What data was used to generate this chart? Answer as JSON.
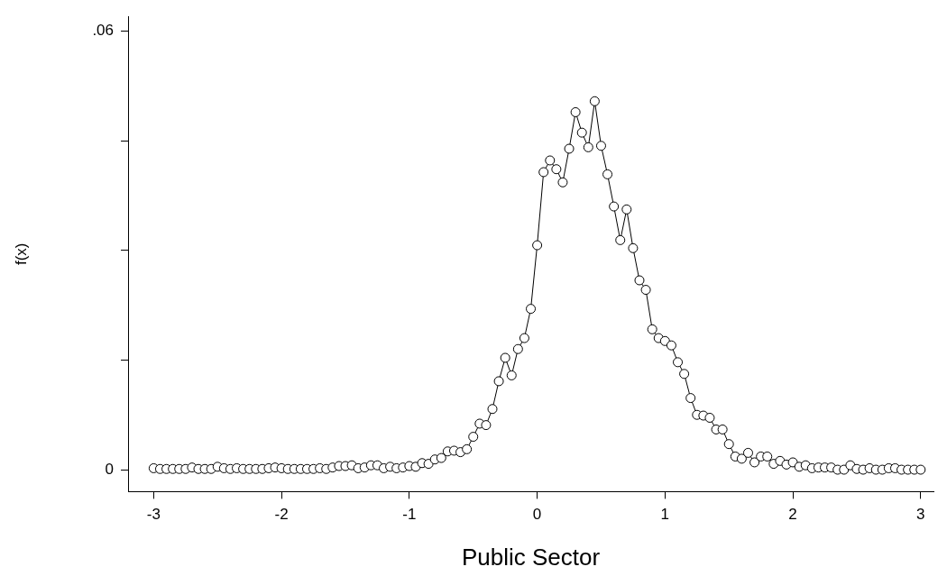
{
  "chart_data": {
    "type": "line",
    "xlabel": "Public Sector",
    "ylabel": "f(x)",
    "xlim": [
      -3.2,
      3.1
    ],
    "xticks": [
      -3,
      -2,
      -1,
      0,
      1,
      2,
      3
    ],
    "ylim": [
      -0.003,
      0.062
    ],
    "yticks": [
      0,
      {
        "value": 0.015,
        "label": null
      },
      {
        "value": 0.03,
        "label": null
      },
      {
        "value": 0.045,
        "label": null
      },
      {
        "value": 0.06,
        "label": ".06"
      }
    ],
    "grid": false,
    "legend": false,
    "marker": "circle",
    "line_style": "solid",
    "x": [
      -3,
      -2.95,
      -2.9,
      -2.85,
      -2.8,
      -2.75,
      -2.7,
      -2.65,
      -2.6,
      -2.55,
      -2.5,
      -2.45,
      -2.4,
      -2.35,
      -2.3,
      -2.25,
      -2.2,
      -2.15,
      -2.1,
      -2.05,
      -2,
      -1.95,
      -1.9,
      -1.85,
      -1.8,
      -1.75,
      -1.7,
      -1.65,
      -1.6,
      -1.55,
      -1.5,
      -1.45,
      -1.4,
      -1.35,
      -1.3,
      -1.25,
      -1.2,
      -1.15,
      -1.1,
      -1.05,
      -1,
      -0.95,
      -0.9,
      -0.85,
      -0.8,
      -0.75,
      -0.7,
      -0.65,
      -0.6,
      -0.55,
      -0.5,
      -0.45,
      -0.4,
      -0.35,
      -0.3,
      -0.25,
      -0.2,
      -0.15,
      -0.1,
      -0.05,
      0,
      0.05,
      0.1,
      0.15,
      0.2,
      0.25,
      0.3,
      0.35,
      0.4,
      0.45,
      0.5,
      0.55,
      0.6,
      0.65,
      0.7,
      0.75,
      0.8,
      0.85,
      0.9,
      0.95,
      1,
      1.05,
      1.1,
      1.15,
      1.2,
      1.25,
      1.3,
      1.35,
      1.4,
      1.45,
      1.5,
      1.55,
      1.6,
      1.65,
      1.7,
      1.75,
      1.8,
      1.85,
      1.9,
      1.95,
      2,
      2.05,
      2.1,
      2.15,
      2.2,
      2.25,
      2.3,
      2.35,
      2.4,
      2.45,
      2.5,
      2.55,
      2.6,
      2.65,
      2.7,
      2.75,
      2.8,
      2.85,
      2.9,
      2.95,
      3
    ],
    "series": [
      {
        "color": "#000000",
        "values": [
          0.0002,
          0.0001,
          0.0001,
          0.0001,
          0.0001,
          0.0001,
          0.0003,
          0.0001,
          0.0001,
          0.0001,
          0.0004,
          0.0002,
          0.0001,
          0.0002,
          0.0001,
          0.0001,
          0.0001,
          0.0001,
          0.0002,
          0.0003,
          0.0002,
          0.0001,
          0.0001,
          0.0001,
          0.0001,
          0.0001,
          0.0002,
          0.0001,
          0.0003,
          0.0005,
          0.0005,
          0.0006,
          0.0002,
          0.0003,
          0.0006,
          0.0006,
          0.0002,
          0.0004,
          0.0002,
          0.0003,
          0.0005,
          0.0004,
          0.0009,
          0.0008,
          0.0014,
          0.0016,
          0.0025,
          0.0026,
          0.0024,
          0.0028,
          0.0045,
          0.0063,
          0.0061,
          0.0083,
          0.0121,
          0.0153,
          0.0129,
          0.0165,
          0.018,
          0.022,
          0.0307,
          0.0407,
          0.0423,
          0.0411,
          0.0393,
          0.0439,
          0.0489,
          0.0461,
          0.0441,
          0.0504,
          0.0443,
          0.0404,
          0.036,
          0.0314,
          0.0356,
          0.0303,
          0.0259,
          0.0246,
          0.0192,
          0.018,
          0.0176,
          0.017,
          0.0147,
          0.0131,
          0.0098,
          0.0075,
          0.0074,
          0.0071,
          0.0055,
          0.0055,
          0.0035,
          0.0018,
          0.0015,
          0.0023,
          0.001,
          0.0018,
          0.0018,
          0.0008,
          0.0012,
          0.0007,
          0.001,
          0.0004,
          0.0006,
          0.0002,
          0.0003,
          0.0003,
          0.0003,
          0,
          0,
          0.0006,
          0.0001,
          0,
          0.0002,
          0,
          0,
          0.0002,
          0.0002,
          0,
          0,
          0,
          0
        ]
      }
    ]
  }
}
